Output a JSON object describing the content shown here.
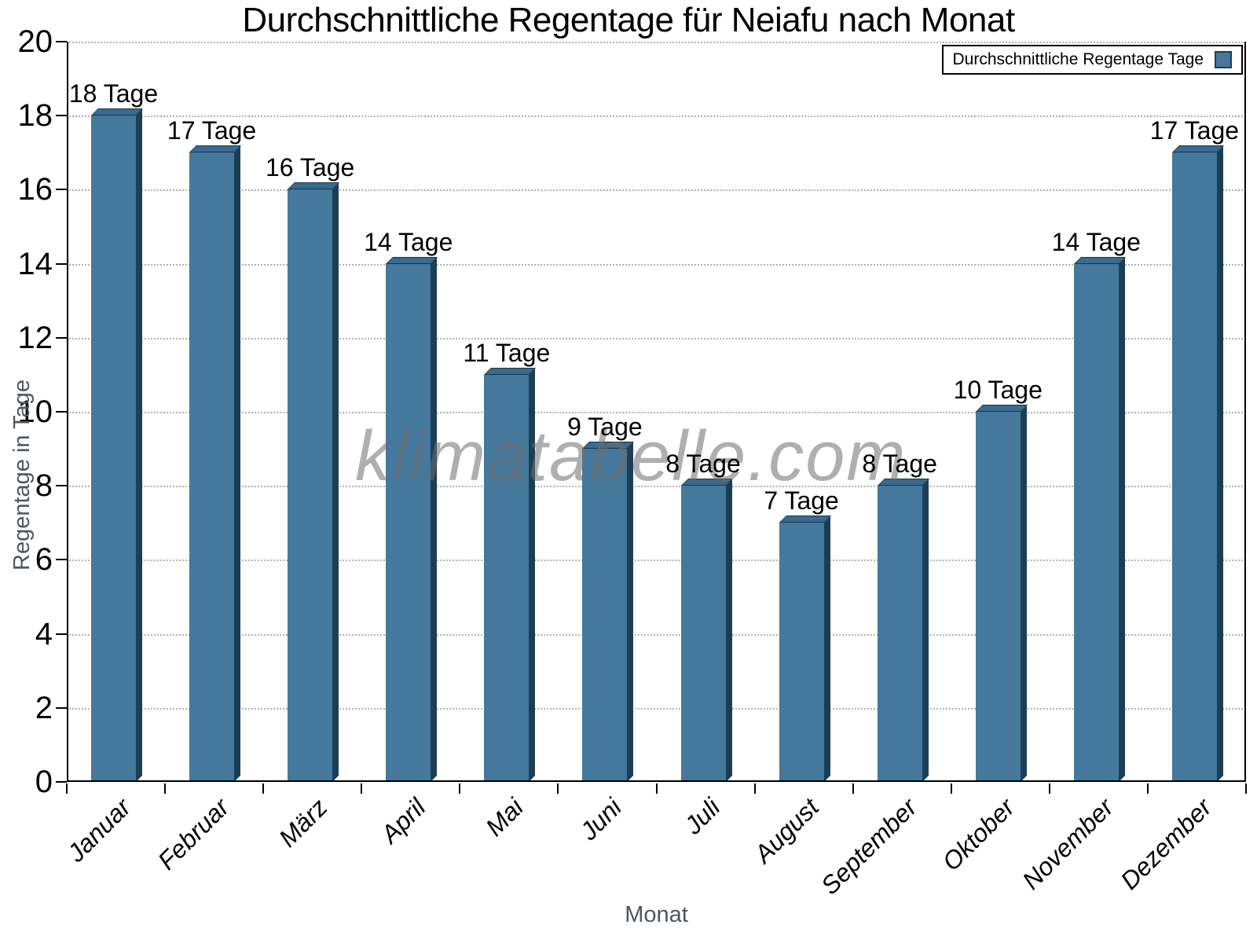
{
  "title": "Durchschnittliche Regentage für Neiafu nach Monat",
  "legend": {
    "label": "Durchschnittliche Regentage Tage",
    "position": "top-right"
  },
  "watermark": "klimatabelle.com",
  "y_axis": {
    "label": "Regentage in Tage",
    "ticks": [
      0,
      2,
      4,
      6,
      8,
      10,
      12,
      14,
      16,
      18,
      20
    ]
  },
  "x_axis": {
    "label": "Monat"
  },
  "colors": {
    "bar_front": "#45789d",
    "bar_side": "#1c3e54",
    "bar_top": "#3a6a8e",
    "bar_edge": "#16344a",
    "grid": "#b3b3b3",
    "axis": "#000000",
    "axis_title": "#4d565f",
    "watermark": "#6e6e6e",
    "text": "#000000"
  },
  "chart_data": {
    "type": "bar",
    "title": "Durchschnittliche Regentage für Neiafu nach Monat",
    "categories": [
      "Januar",
      "Februar",
      "März",
      "April",
      "Mai",
      "Juni",
      "Juli",
      "August",
      "September",
      "Oktober",
      "November",
      "Dezember"
    ],
    "series": [
      {
        "name": "Durchschnittliche Regentage",
        "values": [
          18,
          17,
          16,
          14,
          11,
          9,
          8,
          7,
          8,
          10,
          14,
          17
        ]
      }
    ],
    "bar_labels": [
      "18 Tage",
      "17 Tage",
      "16 Tage",
      "14 Tage",
      "11 Tage",
      "9 Tage",
      "8 Tage",
      "7 Tage",
      "8 Tage",
      "10 Tage",
      "14 Tage",
      "17 Tage"
    ],
    "unit": "Tage",
    "xlabel": "Monat",
    "ylabel": "Regentage in Tage",
    "ylim": [
      0,
      20
    ],
    "grid": "dotted-horizontal",
    "legend_position": "top-right",
    "x_tick_label_rotation": -45
  }
}
